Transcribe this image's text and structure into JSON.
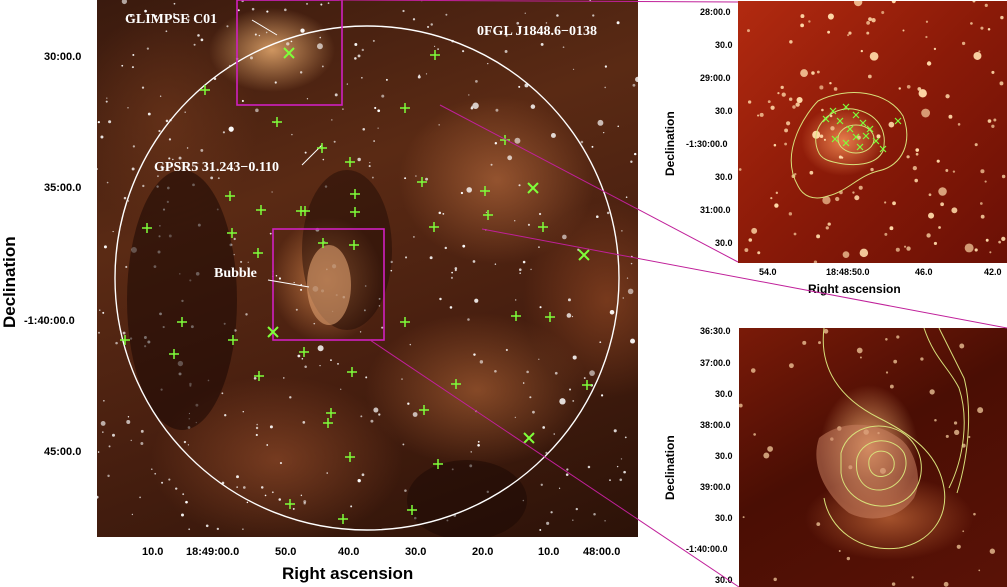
{
  "main": {
    "xlabel": "Right ascension",
    "ylabel": "Declination",
    "x_ticks": [
      "10.0",
      "18:49:00.0",
      "50.0",
      "40.0",
      "30.0",
      "20.0",
      "10.0",
      "48:00.0"
    ],
    "y_ticks": [
      "30:00.0",
      "35:00.0",
      "-1:40:00.0",
      "45:00.0"
    ],
    "annotations": {
      "glimpse": "GLIMPSE C01",
      "fermi": "0FGL J1848.6−0138",
      "gpsr": "GPSR5 31.243−0.110",
      "bubble": "Bubble"
    }
  },
  "inset_top": {
    "xlabel": "Right ascension",
    "ylabel": "Declination",
    "x_ticks": [
      "54.0",
      "18:48:50.0",
      "46.0",
      "42.0"
    ],
    "y_ticks": [
      "28:00.0",
      "30.0",
      "29:00.0",
      "30.0",
      "-1:30:00.0",
      "30.0",
      "31:00.0",
      "30.0"
    ]
  },
  "inset_bottom": {
    "ylabel": "Declination",
    "y_ticks": [
      "36:30.0",
      "37:00.0",
      "30.0",
      "38:00.0",
      "30.0",
      "39:00.0",
      "30.0",
      "-1:40:00.0",
      "30.0"
    ]
  },
  "colors": {
    "cross_marker": "#7fff3a",
    "circle": "#ffffff",
    "box": "#d020c0",
    "contour": "#d8e07a"
  }
}
